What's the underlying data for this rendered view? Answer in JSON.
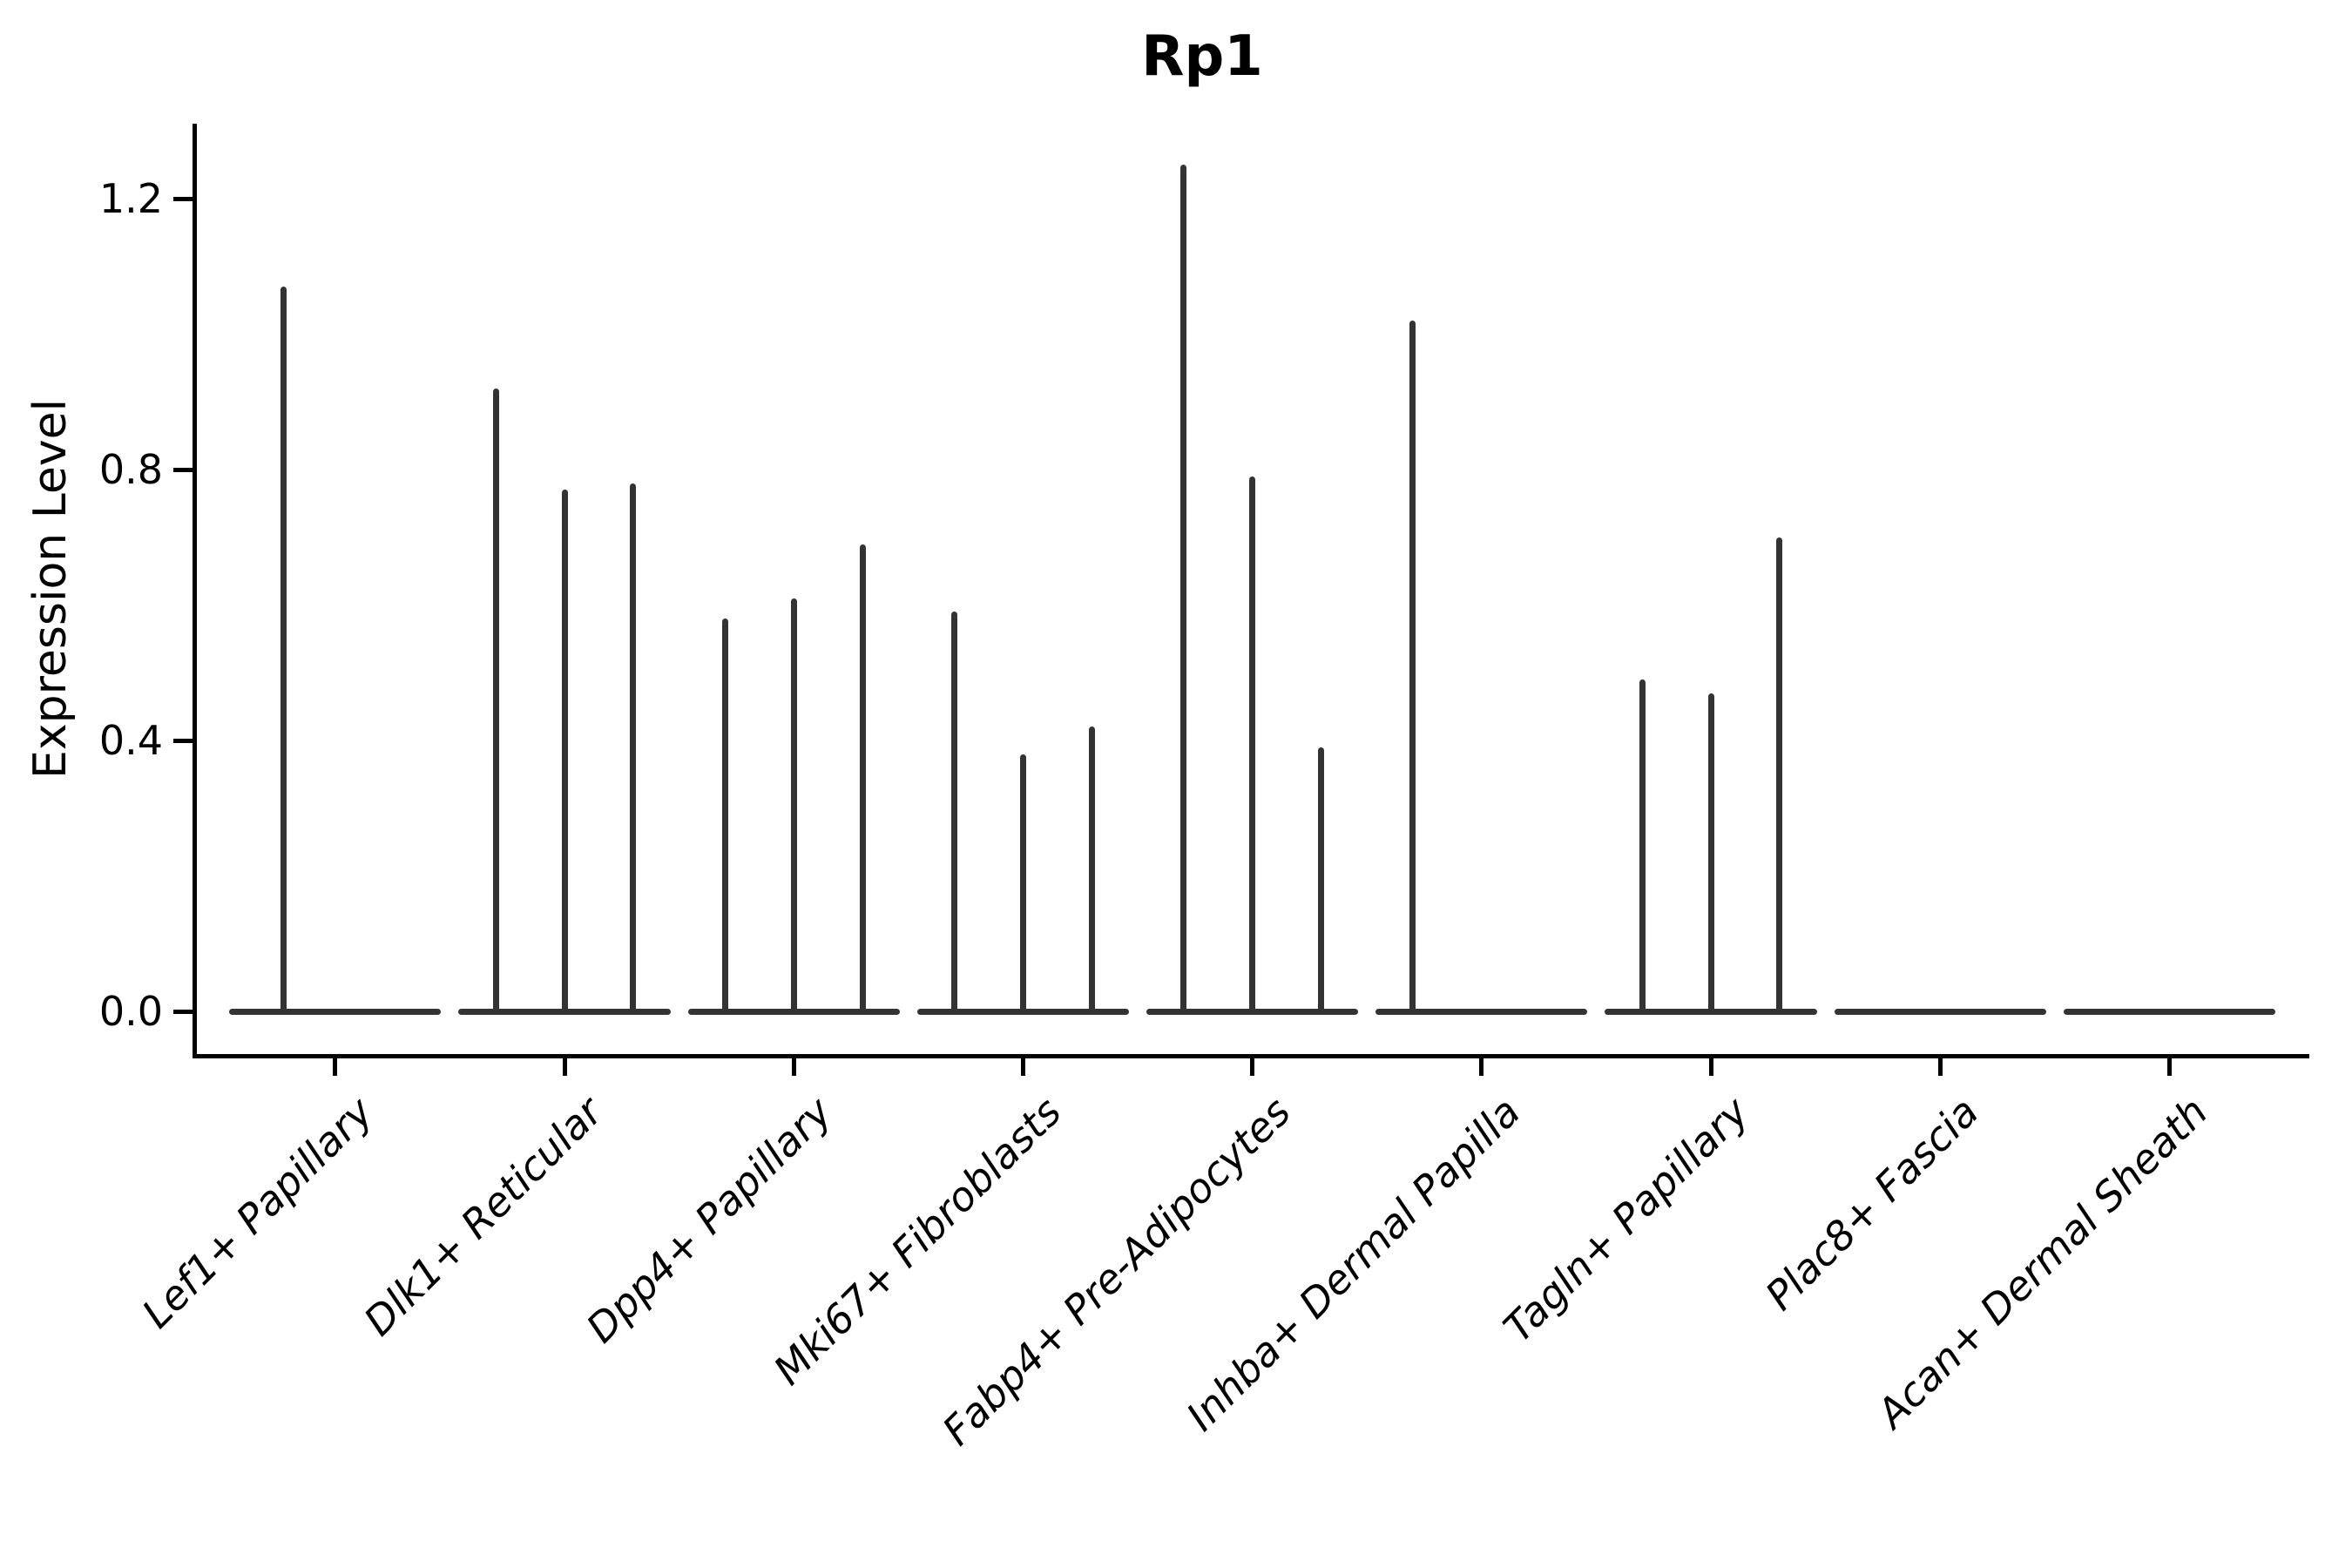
{
  "chart_data": {
    "type": "violin",
    "title": "Rp1",
    "ylabel": "Expression Level",
    "xlabel": "",
    "background": "#ffffff",
    "violin_color": "#333333",
    "axis_color": "#000000",
    "text_color": "#000000",
    "grid": false,
    "legend": null,
    "ylim": [
      -0.06,
      1.31
    ],
    "yticks": [
      {
        "label": "0.0",
        "value": 0.0
      },
      {
        "label": "0.4",
        "value": 0.4
      },
      {
        "label": "0.8",
        "value": 0.8
      },
      {
        "label": "1.2",
        "value": 1.2
      }
    ],
    "categories": [
      "Lef1+ Papillary",
      "Dlk1+ Reticular",
      "Dpp4+ Papillary",
      "Mki67+ Fibroblasts",
      "Fabp4+ Pre-Adipocytes",
      "Inhba+ Dermal Papilla",
      "Tagln+ Papillary",
      "Plac8+ Fascia",
      "Acan+ Dermal Sheath"
    ],
    "groups": [
      {
        "label": "Lef1+ Papillary",
        "spikes": [
          {
            "offset": -0.224,
            "value": 1.07
          }
        ]
      },
      {
        "label": "Dlk1+ Reticular",
        "spikes": [
          {
            "offset": -0.3,
            "value": 0.92
          },
          {
            "offset": 0.0,
            "value": 0.77
          },
          {
            "offset": 0.3,
            "value": 0.78
          }
        ]
      },
      {
        "label": "Dpp4+ Papillary",
        "spikes": [
          {
            "offset": -0.3,
            "value": 0.58
          },
          {
            "offset": 0.0,
            "value": 0.61
          },
          {
            "offset": 0.3,
            "value": 0.69
          }
        ]
      },
      {
        "label": "Mki67+ Fibroblasts",
        "spikes": [
          {
            "offset": -0.3,
            "value": 0.59
          },
          {
            "offset": 0.0,
            "value": 0.38
          },
          {
            "offset": 0.3,
            "value": 0.42
          }
        ]
      },
      {
        "label": "Fabp4+ Pre-Adipocytes",
        "spikes": [
          {
            "offset": -0.3,
            "value": 1.25
          },
          {
            "offset": 0.0,
            "value": 0.79
          },
          {
            "offset": 0.3,
            "value": 0.39
          }
        ]
      },
      {
        "label": "Inhba+ Dermal Papilla",
        "spikes": [
          {
            "offset": -0.3,
            "value": 1.02
          }
        ]
      },
      {
        "label": "Tagln+ Papillary",
        "spikes": [
          {
            "offset": -0.3,
            "value": 0.49
          },
          {
            "offset": 0.0,
            "value": 0.47
          },
          {
            "offset": 0.3,
            "value": 0.7
          }
        ]
      },
      {
        "label": "Plac8+ Fascia",
        "spikes": []
      },
      {
        "label": "Acan+ Dermal Sheath",
        "spikes": []
      }
    ]
  }
}
